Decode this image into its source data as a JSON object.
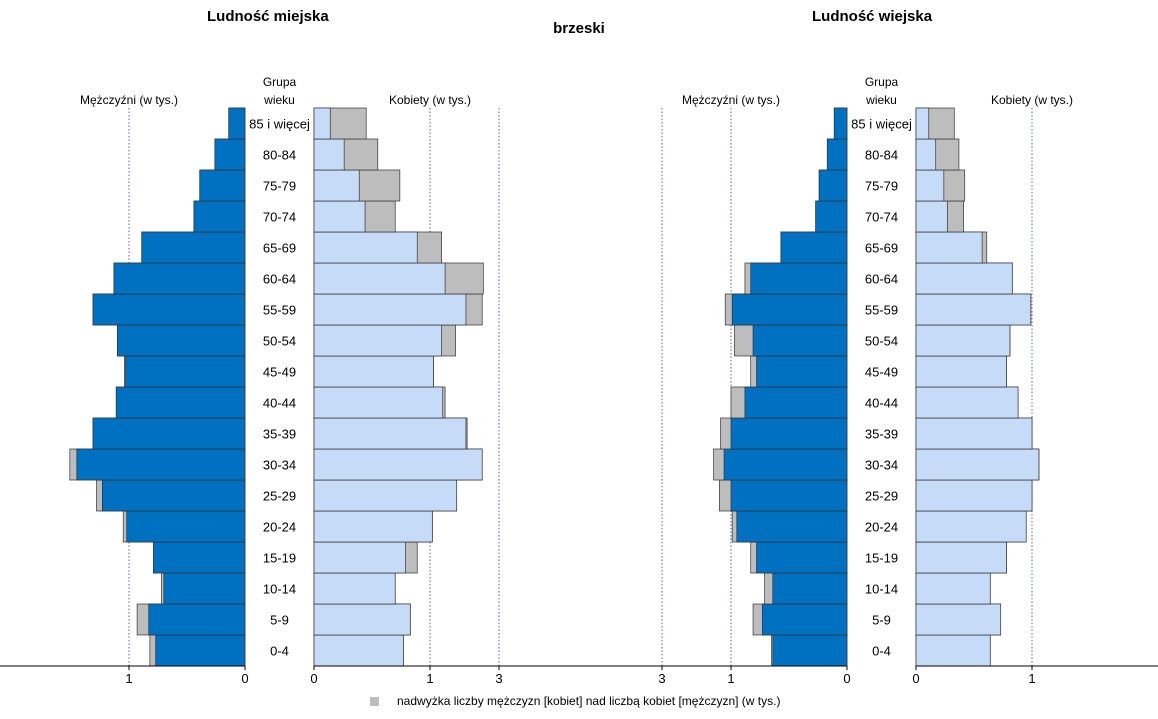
{
  "title": "brzeski",
  "colors": {
    "male": "#0070c0",
    "female": "#c6dbf7",
    "surplus": "#bdbdbd",
    "grid": "#3333dd"
  },
  "legend_text": "nadwyżka liczby mężczyzn [kobiet] nad liczbą kobiet [mężczyzn] (w tys.)",
  "chart_data": [
    {
      "type": "bar",
      "title": "Ludność miejska",
      "male_label": "Mężczyźni (w tys.)",
      "female_label": "Kobiety (w tys.)",
      "age_header": "Grupa wieku",
      "xlim": [
        0,
        3
      ],
      "xticks": [
        "3",
        "1",
        "0",
        "0",
        "1",
        "3"
      ],
      "categories": [
        "0-4",
        "5-9",
        "10-14",
        "15-19",
        "20-24",
        "25-29",
        "30-34",
        "35-39",
        "40-44",
        "45-49",
        "50-54",
        "55-59",
        "60-64",
        "65-69",
        "70-74",
        "75-79",
        "80-84",
        "85 i więcej"
      ],
      "series": [
        {
          "name": "Mężczyźni",
          "values": [
            0.82,
            0.93,
            0.72,
            0.79,
            1.05,
            1.28,
            1.51,
            1.31,
            1.11,
            1.04,
            1.1,
            1.31,
            1.13,
            0.89,
            0.44,
            0.39,
            0.26,
            0.14
          ]
        },
        {
          "name": "Kobiety",
          "values": [
            0.77,
            0.83,
            0.7,
            0.89,
            1.02,
            1.23,
            1.45,
            1.32,
            1.13,
            1.03,
            1.22,
            1.45,
            1.46,
            1.1,
            0.7,
            0.74,
            0.55,
            0.45
          ]
        }
      ]
    },
    {
      "type": "bar",
      "title": "Ludność wiejska",
      "male_label": "Mężczyźni (w tys.)",
      "female_label": "Kobiety (w tys.)",
      "age_header": "Grupa wieku",
      "xlim": [
        0,
        3
      ],
      "xticks": [
        "3",
        "1",
        "0",
        "0",
        "1",
        "3"
      ],
      "categories": [
        "0-4",
        "5-9",
        "10-14",
        "15-19",
        "20-24",
        "25-29",
        "30-34",
        "35-39",
        "40-44",
        "45-49",
        "50-54",
        "55-59",
        "60-64",
        "65-69",
        "70-74",
        "75-79",
        "80-84",
        "85 i więcej"
      ],
      "series": [
        {
          "name": "Mężczyźni",
          "values": [
            0.65,
            0.81,
            0.71,
            0.83,
            0.99,
            1.1,
            1.15,
            1.09,
            1.0,
            0.83,
            0.97,
            1.05,
            0.88,
            0.57,
            0.27,
            0.24,
            0.17,
            0.11
          ]
        },
        {
          "name": "Kobiety",
          "values": [
            0.64,
            0.73,
            0.64,
            0.78,
            0.95,
            1.0,
            1.06,
            1.0,
            0.88,
            0.78,
            0.81,
            0.99,
            0.83,
            0.61,
            0.41,
            0.42,
            0.37,
            0.33
          ]
        }
      ]
    }
  ]
}
